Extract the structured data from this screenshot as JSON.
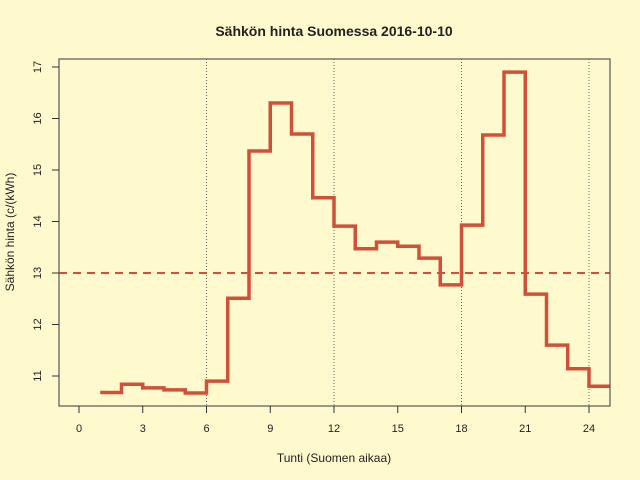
{
  "chart_data": {
    "type": "line",
    "step": true,
    "title": "Sähkön hinta Suomessa 2016-10-10",
    "xlabel": "Tunti (Suomen aikaa)",
    "ylabel": "Sähkön hinta (c/(kWh)",
    "xlim": [
      -1,
      25
    ],
    "ylim": [
      10.4,
      17.15
    ],
    "xticks": [
      0,
      3,
      6,
      9,
      12,
      15,
      18,
      21,
      24
    ],
    "yticks": [
      11,
      12,
      13,
      14,
      15,
      16,
      17
    ],
    "vlines": [
      6,
      12,
      18,
      24
    ],
    "mean_line": 13.0,
    "grid": false,
    "legend": null,
    "series": [
      {
        "name": "Sähkön hinta",
        "color": "#d2503a",
        "x": [
          1,
          2,
          3,
          4,
          5,
          6,
          7,
          8,
          9,
          10,
          11,
          12,
          13,
          14,
          15,
          16,
          17,
          18,
          19,
          20,
          21,
          22,
          23,
          24
        ],
        "values": [
          10.68,
          10.84,
          10.77,
          10.73,
          10.67,
          10.9,
          12.51,
          15.37,
          16.3,
          15.7,
          14.46,
          13.91,
          13.47,
          13.6,
          13.52,
          13.29,
          12.77,
          13.93,
          15.68,
          16.9,
          12.59,
          11.6,
          11.14,
          10.8
        ]
      }
    ],
    "colors": {
      "background": "#fffacd",
      "line": "#d2503a",
      "mean_line": "#d2503a",
      "axis": "#555555",
      "vline": "#666666"
    }
  }
}
